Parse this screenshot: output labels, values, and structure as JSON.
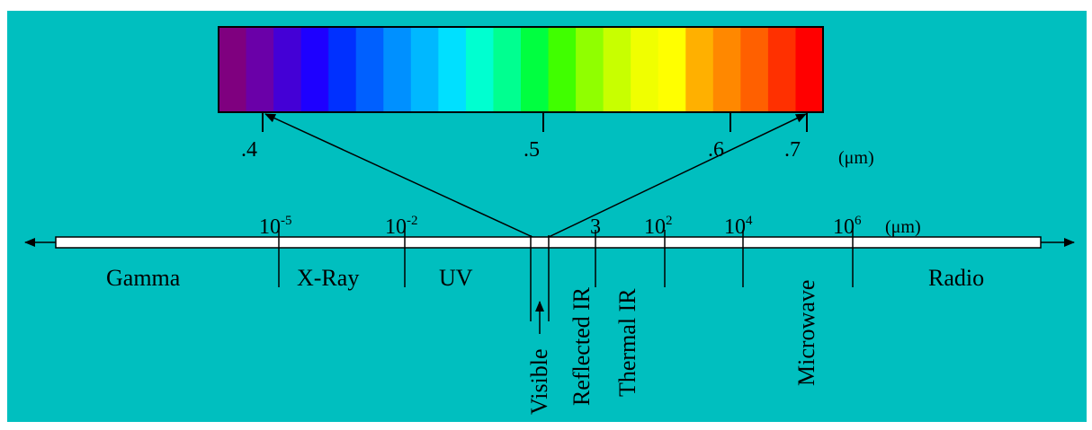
{
  "diagram": {
    "background_color": "#00BFBF",
    "spectrum": {
      "colors": [
        "#7f007f",
        "#6a00a8",
        "#4400d6",
        "#1e00ff",
        "#0030ff",
        "#0060ff",
        "#0090ff",
        "#00b8ff",
        "#00e0ff",
        "#00ffd0",
        "#00ff90",
        "#00ff40",
        "#40ff00",
        "#90ff00",
        "#c8ff00",
        "#f0ff00",
        "#ffff00",
        "#ffb000",
        "#ff8800",
        "#ff6000",
        "#ff3000",
        "#ff0000"
      ],
      "tick_labels": [
        ".4",
        ".5",
        ".6",
        ".7"
      ],
      "unit": "(μm)"
    },
    "axis": {
      "tick_labels": [
        {
          "base": "10",
          "exp": "-5"
        },
        {
          "base": "10",
          "exp": "-2"
        },
        {
          "base": "3",
          "exp": ""
        },
        {
          "base": "10",
          "exp": "2"
        },
        {
          "base": "10",
          "exp": "4"
        },
        {
          "base": "10",
          "exp": "6"
        }
      ],
      "unit": "(μm)"
    },
    "bands": {
      "gamma": "Gamma",
      "xray": "X-Ray",
      "uv": "UV",
      "radio": "Radio",
      "visible": "Visible",
      "reflected_ir": "Reflected IR",
      "thermal_ir": "Thermal IR",
      "microwave": "Microwave"
    }
  }
}
